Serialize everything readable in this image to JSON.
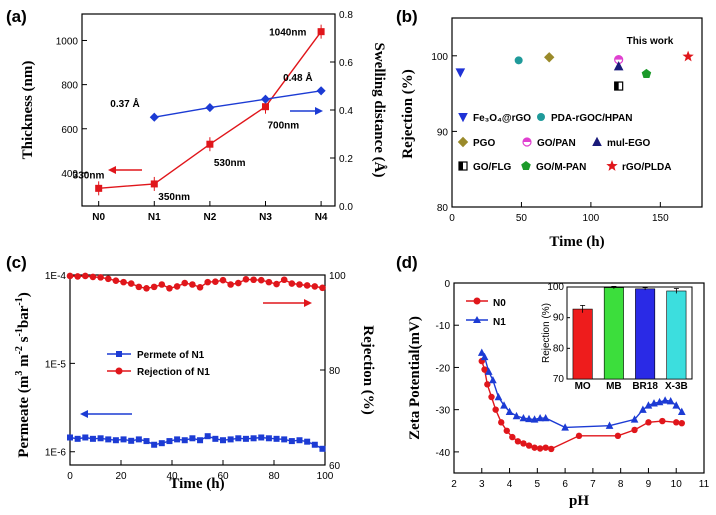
{
  "chart_data": [
    {
      "panel": "(a)",
      "type": "line",
      "categories": [
        "N0",
        "N1",
        "N2",
        "N3",
        "N4"
      ],
      "ylabel": "Thickness (nm)",
      "y2label": "Swelling distance (Å)",
      "ylim": [
        250,
        1120
      ],
      "y2lim": [
        0,
        0.8
      ],
      "yticks": [
        "400",
        "600",
        "800",
        "1000"
      ],
      "y2ticks": [
        "0.0",
        "0.2",
        "0.4",
        "0.6",
        "0.8"
      ],
      "series": [
        {
          "name": "Thickness",
          "axis": "left",
          "color": "#e0161b",
          "values": [
            330,
            350,
            530,
            700,
            1040
          ]
        },
        {
          "name": "Swelling distance",
          "axis": "right",
          "color": "#1c3bd4",
          "values": [
            null,
            0.37,
            0.41,
            0.445,
            0.48
          ]
        }
      ],
      "annotations": [
        "330nm",
        "350nm",
        "530nm",
        "700nm",
        "1040nm",
        "0.37 Å",
        "0.48 Å"
      ]
    },
    {
      "panel": "(b)",
      "type": "scatter",
      "xlabel": "Time (h)",
      "ylabel": "Rejection (%)",
      "xlim": [
        0,
        180
      ],
      "ylim": [
        80,
        105
      ],
      "xticks": [
        "0",
        "50",
        "100",
        "150"
      ],
      "yticks": [
        "80",
        "90",
        "100"
      ],
      "this_work_label": "This work",
      "series": [
        {
          "name": "Fe3O4@rGO",
          "legend_label": "Fe₃O₄@rGO",
          "marker": "triangle-down",
          "color": "#1f32d6",
          "x": 6,
          "y": 97.8
        },
        {
          "name": "PDA-rGOC/HPAN",
          "legend_label": "PDA-rGOC/HPAN",
          "marker": "circle",
          "color": "#1f9a9a",
          "x": 48,
          "y": 99.4
        },
        {
          "name": "PGO",
          "legend_label": "PGO",
          "marker": "diamond",
          "color": "#9a8a2a",
          "x": 70,
          "y": 99.8
        },
        {
          "name": "GO/PAN",
          "legend_label": "GO/PAN",
          "marker": "circle-half",
          "color": "#e040d0",
          "x": 120,
          "y": 99.5
        },
        {
          "name": "mul-EGO",
          "legend_label": "mul-EGO",
          "marker": "triangle-up",
          "color": "#1a1a7a",
          "x": 120,
          "y": 98.6
        },
        {
          "name": "GO/FLG",
          "legend_label": "GO/FLG",
          "marker": "square-half",
          "color": "#000000",
          "x": 120,
          "y": 96.0
        },
        {
          "name": "GO/M-PAN",
          "legend_label": "GO/M-PAN",
          "marker": "pentagon",
          "color": "#1c9a2a",
          "x": 140,
          "y": 97.6
        },
        {
          "name": "rGO/PLDA",
          "legend_label": "rGO/PLDA",
          "marker": "star",
          "color": "#e0161b",
          "x": 170,
          "y": 99.9
        }
      ]
    },
    {
      "panel": "(c)",
      "type": "line",
      "xlabel": "Time (h)",
      "ylabel": "Permeate (m³ m⁻² s⁻¹ bar⁻¹)",
      "ylabel_prefix": "Permeate (m",
      "ylabel_a": "3",
      "ylabel_b": " m",
      "ylabel_c": "-2",
      "ylabel_d": " s",
      "ylabel_e": "-1",
      "ylabel_f": "bar",
      "ylabel_g": "-1",
      "ylabel_h": ")",
      "y2label": "Rejection (%)",
      "xlim": [
        0,
        100
      ],
      "ylim_log": [
        -6.15,
        -4
      ],
      "y2lim": [
        60,
        100
      ],
      "xticks": [
        "0",
        "20",
        "40",
        "60",
        "80",
        "100"
      ],
      "yticks": [
        "1E-4",
        "1E-5",
        "1E-6"
      ],
      "y2ticks": [
        "60",
        "80",
        "100"
      ],
      "x": [
        0,
        3,
        6,
        9,
        12,
        15,
        18,
        21,
        24,
        27,
        30,
        33,
        36,
        39,
        42,
        45,
        48,
        51,
        54,
        57,
        60,
        63,
        66,
        69,
        72,
        75,
        78,
        81,
        84,
        87,
        90,
        93,
        96,
        99
      ],
      "series": [
        {
          "name": "Permete of N1",
          "axis": "left",
          "color": "#1c3bd4",
          "marker": "square",
          "values": [
            1.45e-06,
            1.4e-06,
            1.45e-06,
            1.4e-06,
            1.42e-06,
            1.38e-06,
            1.35e-06,
            1.38e-06,
            1.33e-06,
            1.38e-06,
            1.32e-06,
            1.2e-06,
            1.25e-06,
            1.32e-06,
            1.38e-06,
            1.35e-06,
            1.42e-06,
            1.35e-06,
            1.5e-06,
            1.4e-06,
            1.35e-06,
            1.38e-06,
            1.42e-06,
            1.4e-06,
            1.42e-06,
            1.45e-06,
            1.42e-06,
            1.4e-06,
            1.38e-06,
            1.32e-06,
            1.35e-06,
            1.3e-06,
            1.2e-06,
            1.08e-06
          ]
        },
        {
          "name": "Rejection of N1",
          "axis": "right",
          "color": "#e0161b",
          "marker": "circle",
          "values": [
            99.8,
            99.7,
            99.8,
            99.6,
            99.5,
            99.2,
            98.8,
            98.5,
            98.2,
            97.5,
            97.2,
            97.5,
            98.0,
            97.2,
            97.6,
            98.3,
            98.0,
            97.4,
            98.5,
            98.6,
            98.9,
            98.0,
            98.3,
            99.1,
            99.0,
            98.9,
            98.5,
            98.1,
            99.0,
            98.2,
            98.0,
            97.8,
            97.6,
            97.3
          ]
        }
      ]
    },
    {
      "panel": "(d)",
      "type": "line",
      "xlabel": "pH",
      "ylabel": "Zeta Potential(mV)",
      "xlim": [
        2,
        11
      ],
      "ylim": [
        -45,
        0
      ],
      "xticks": [
        "2",
        "3",
        "4",
        "5",
        "6",
        "7",
        "8",
        "9",
        "10",
        "11"
      ],
      "yticks": [
        "0",
        "-10",
        "-20",
        "-30",
        "-40"
      ],
      "series": [
        {
          "name": "N0",
          "color": "#e0161b",
          "marker": "circle",
          "x": [
            3.0,
            3.1,
            3.2,
            3.35,
            3.5,
            3.7,
            3.9,
            4.1,
            4.3,
            4.5,
            4.7,
            4.9,
            5.1,
            5.3,
            5.5,
            6.5,
            7.9,
            8.5,
            9.0,
            9.5,
            10.0,
            10.2
          ],
          "y": [
            -18.5,
            -20.5,
            -24,
            -27,
            -30,
            -33,
            -35,
            -36.5,
            -37.5,
            -38,
            -38.5,
            -39,
            -39.2,
            -39,
            -39.3,
            -36.2,
            -36.2,
            -34.8,
            -33,
            -32.7,
            -33,
            -33.2
          ]
        },
        {
          "name": "N1",
          "color": "#1c3bd4",
          "marker": "triangle-up",
          "x": [
            3.0,
            3.1,
            3.25,
            3.4,
            3.6,
            3.8,
            4.0,
            4.25,
            4.5,
            4.7,
            4.9,
            5.1,
            5.3,
            6.0,
            7.6,
            8.5,
            8.8,
            9.0,
            9.2,
            9.4,
            9.6,
            9.8,
            10.0,
            10.2
          ],
          "y": [
            -16.5,
            -17.5,
            -21,
            -23,
            -27,
            -29,
            -30.5,
            -31.5,
            -32,
            -32.2,
            -32.3,
            -32,
            -32,
            -34.2,
            -33.8,
            -32.3,
            -30,
            -29,
            -28.5,
            -28.2,
            -27.8,
            -28,
            -29,
            -30.5
          ]
        }
      ],
      "inset": {
        "type": "bar",
        "ylabel": "Rejection (%)",
        "ylim": [
          70,
          100
        ],
        "yticks": [
          "70",
          "80",
          "90",
          "100"
        ],
        "categories": [
          "MO",
          "MB",
          "BR18",
          "X-3B"
        ],
        "values": [
          92.8,
          99.8,
          99.4,
          98.7
        ],
        "errors": [
          1.2,
          0.4,
          0.4,
          0.8
        ],
        "colors": [
          "#ee1c1c",
          "#3cde3c",
          "#2a2ae6",
          "#3cdede"
        ]
      }
    }
  ],
  "panel_labels": [
    "(a)",
    "(b)",
    "(c)",
    "(d)"
  ]
}
